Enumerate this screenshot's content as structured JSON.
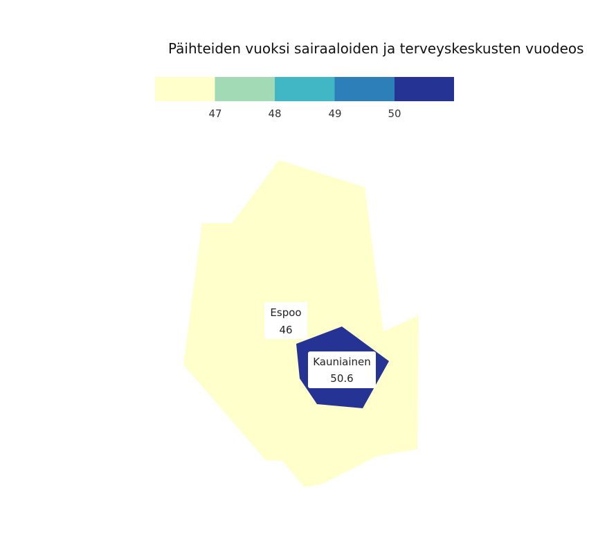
{
  "map": {
    "title": "Päihteiden vuoksi sairaaloiden ja terveyskeskusten vuodeos",
    "legend": {
      "colors": [
        "#ffffcc",
        "#a1dab4",
        "#41b6c4",
        "#2c7fb8",
        "#253494"
      ],
      "ticks": [
        "47",
        "48",
        "49",
        "50"
      ]
    },
    "regions": [
      {
        "name": "Espoo",
        "value": "46",
        "color": "#ffffcc"
      },
      {
        "name": "Kauniainen",
        "value": "50.6",
        "color": "#253494"
      }
    ]
  }
}
